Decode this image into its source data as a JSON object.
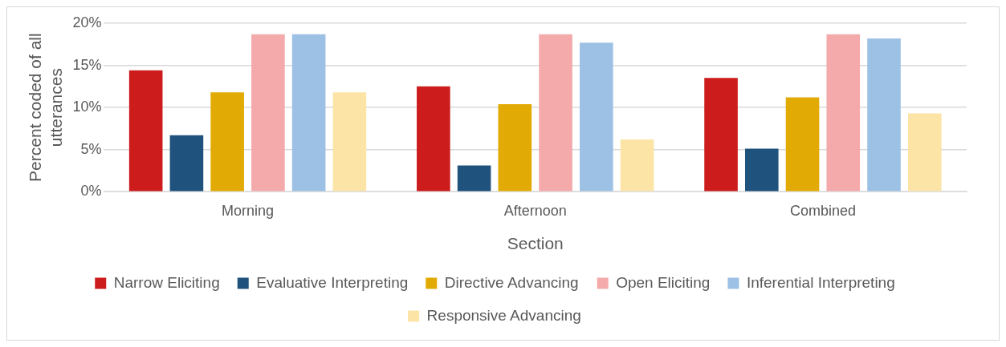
{
  "chart_data": {
    "type": "bar",
    "xlabel": "Section",
    "ylabel": "Percent coded of all utterances",
    "categories": [
      "Morning",
      "Afternoon",
      "Combined"
    ],
    "series": [
      {
        "name": "Narrow Eliciting",
        "color": "#cc1c1c",
        "values": [
          14.4,
          12.5,
          13.5
        ]
      },
      {
        "name": "Evaluative Interpreting",
        "color": "#1f527c",
        "values": [
          6.7,
          3.1,
          5.1
        ]
      },
      {
        "name": "Directive Advancing",
        "color": "#e2aa04",
        "values": [
          11.8,
          10.4,
          11.2
        ]
      },
      {
        "name": "Open Eliciting",
        "color": "#f4aaab",
        "values": [
          18.7,
          18.7,
          18.7
        ]
      },
      {
        "name": "Inferential Interpreting",
        "color": "#9dc1e4",
        "values": [
          18.7,
          17.7,
          18.2
        ]
      },
      {
        "name": "Responsive Advancing",
        "color": "#fbe4a6",
        "values": [
          11.8,
          6.2,
          9.3
        ]
      }
    ],
    "ylim": [
      0,
      20
    ],
    "yticks": [
      {
        "value": 0,
        "label": "0%"
      },
      {
        "value": 5,
        "label": "5%"
      },
      {
        "value": 10,
        "label": "10%"
      },
      {
        "value": 15,
        "label": "15%"
      },
      {
        "value": 20,
        "label": "20%"
      }
    ],
    "grid": "y",
    "legend": "bottom"
  }
}
